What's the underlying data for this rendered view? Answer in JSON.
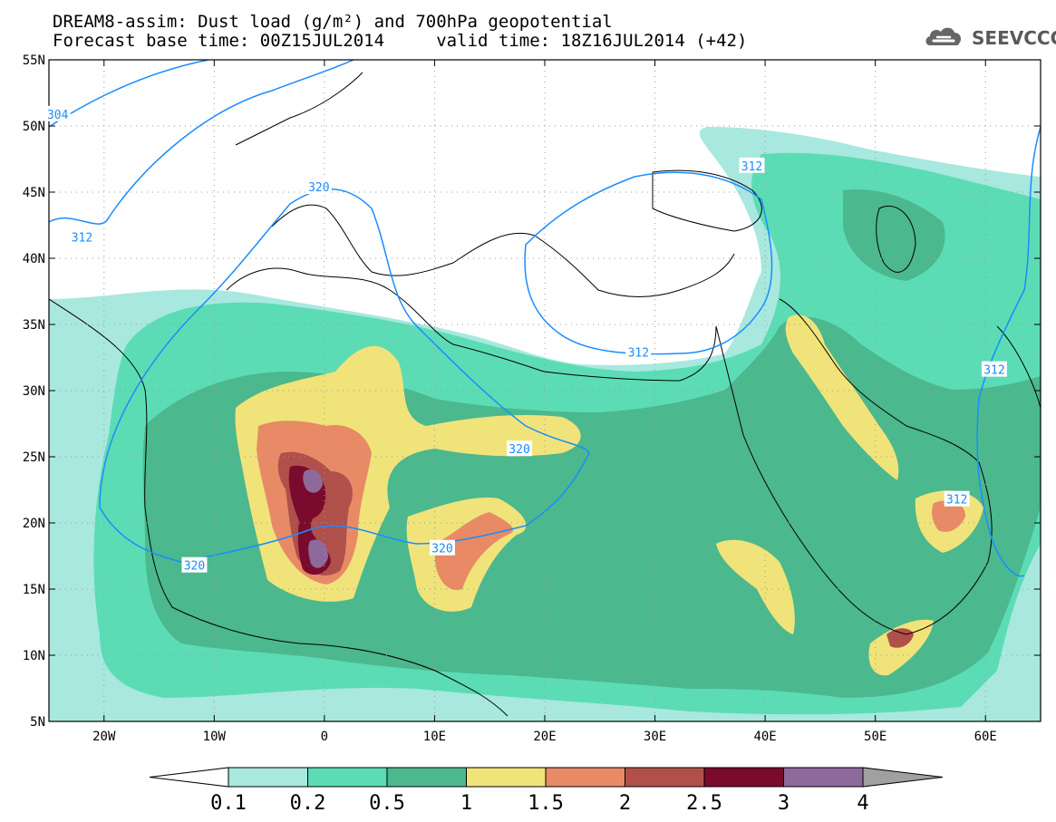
{
  "header": {
    "title_line1": "DREAM8-assim: Dust load (g/m²) and 700hPa geopotential",
    "title_line2": "Forecast base time: 00Z15JUL2014     valid time: 18Z16JUL2014 (+42)",
    "logo_text": "SEEVCCC"
  },
  "map": {
    "lon_range": [
      -25,
      65
    ],
    "lat_range": [
      5,
      55
    ],
    "lat_ticks": [
      {
        "value": 55,
        "label": "55N"
      },
      {
        "value": 50,
        "label": "50N"
      },
      {
        "value": 45,
        "label": "45N"
      },
      {
        "value": 40,
        "label": "40N"
      },
      {
        "value": 35,
        "label": "35N"
      },
      {
        "value": 30,
        "label": "30N"
      },
      {
        "value": 25,
        "label": "25N"
      },
      {
        "value": 20,
        "label": "20N"
      },
      {
        "value": 15,
        "label": "15N"
      },
      {
        "value": 10,
        "label": "10N"
      },
      {
        "value": 5,
        "label": "5N"
      }
    ],
    "lon_ticks": [
      {
        "value": -20,
        "label": "20W"
      },
      {
        "value": -10,
        "label": "10W"
      },
      {
        "value": 0,
        "label": "0"
      },
      {
        "value": 10,
        "label": "10E"
      },
      {
        "value": 20,
        "label": "20E"
      },
      {
        "value": 30,
        "label": "30E"
      },
      {
        "value": 40,
        "label": "40E"
      },
      {
        "value": 50,
        "label": "50E"
      },
      {
        "value": 60,
        "label": "60E"
      }
    ],
    "contour_color": "#1a8cff",
    "contour_labels": [
      {
        "text": "304",
        "lon": -24.2,
        "lat": 50.9
      },
      {
        "text": "312",
        "lon": -22.0,
        "lat": 41.6
      },
      {
        "text": "320",
        "lon": -0.5,
        "lat": 45.4
      },
      {
        "text": "312",
        "lon": 38.8,
        "lat": 47.0
      },
      {
        "text": "312",
        "lon": 28.5,
        "lat": 32.9
      },
      {
        "text": "320",
        "lon": 17.7,
        "lat": 25.6
      },
      {
        "text": "320",
        "lon": 10.7,
        "lat": 18.1
      },
      {
        "text": "320",
        "lon": -11.8,
        "lat": 16.8
      },
      {
        "text": "312",
        "lon": 57.4,
        "lat": 21.8
      },
      {
        "text": "312",
        "lon": 60.8,
        "lat": 31.6
      }
    ]
  },
  "colorbar": {
    "levels": [
      "0.1",
      "0.2",
      "0.5",
      "1",
      "1.5",
      "2",
      "2.5",
      "3",
      "4"
    ],
    "colors": {
      "below": "#ffffff",
      "c1": "#a8e8df",
      "c2": "#5cdcb4",
      "c3": "#4bb88e",
      "c4": "#f0e37a",
      "c5": "#e88a66",
      "c6": "#b0504a",
      "c7": "#7a0a2e",
      "c8": "#8e6a9c",
      "above": "#a0a0a0"
    }
  }
}
